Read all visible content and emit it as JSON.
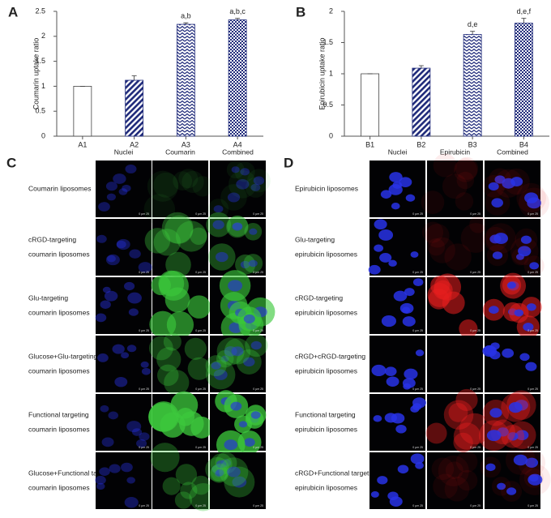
{
  "chart_data": [
    {
      "type": "bar",
      "panel_label": "A",
      "ylabel": "Coumarin uptake ratio",
      "categories": [
        "A1",
        "A2",
        "A3",
        "A4"
      ],
      "values": [
        1,
        1.12,
        2.24,
        2.33
      ],
      "errors": [
        0,
        0.09,
        0.03,
        0.03
      ],
      "annotations": [
        null,
        null,
        "a,b",
        "a,b,c"
      ],
      "color": "#1f2a7a",
      "patterns": [
        "none",
        "stripes",
        "chevron",
        "checker"
      ],
      "ylim": [
        0,
        2.5
      ],
      "yticks": [
        0,
        0.5,
        1,
        1.5,
        2,
        2.5
      ]
    },
    {
      "type": "bar",
      "panel_label": "B",
      "ylabel": "Epirubicin uptake ratio",
      "categories": [
        "B1",
        "B2",
        "B3",
        "B4"
      ],
      "values": [
        1,
        1.09,
        1.63,
        1.81
      ],
      "errors": [
        0,
        0.04,
        0.05,
        0.08
      ],
      "annotations": [
        null,
        null,
        "d,e",
        "d,e,f"
      ],
      "color": "#1f2a7a",
      "patterns": [
        "none",
        "stripes",
        "chevron",
        "checker"
      ],
      "ylim": [
        0,
        2
      ],
      "yticks": [
        0,
        0.5,
        1,
        1.5,
        2
      ]
    }
  ],
  "panels": [
    {
      "letter": "C",
      "columns": [
        "Nuclei",
        "Coumarin",
        "Combined"
      ],
      "rows": [
        [
          "Coumarin liposomes"
        ],
        [
          "cRGD-targeting",
          "coumarin liposomes"
        ],
        [
          "Glu-targeting",
          "coumarin liposomes"
        ],
        [
          "Glucose+Glu-targeting",
          "coumarin liposomes"
        ],
        [
          "Functional targeting",
          "coumarin liposomes"
        ],
        [
          "Glucose+Functional targeting",
          "coumarin liposomes"
        ]
      ]
    },
    {
      "letter": "D",
      "columns": [
        "Nuclei",
        "Epirubicin",
        "Combined"
      ],
      "rows": [
        [
          "Epirubicin liposomes"
        ],
        [
          "Glu-targeting",
          "epirubicin liposomes"
        ],
        [
          "cRGD-targeting",
          "epirubicin liposomes"
        ],
        [
          "cRGD+cRGD-targeting",
          "epirubicin liposomes"
        ],
        [
          "Functional targeting",
          "epirubicin liposomes"
        ],
        [
          "cRGD+Functional targeting",
          "epirubicin liposomes"
        ]
      ]
    }
  ],
  "scale_bar": "0 μm 25"
}
